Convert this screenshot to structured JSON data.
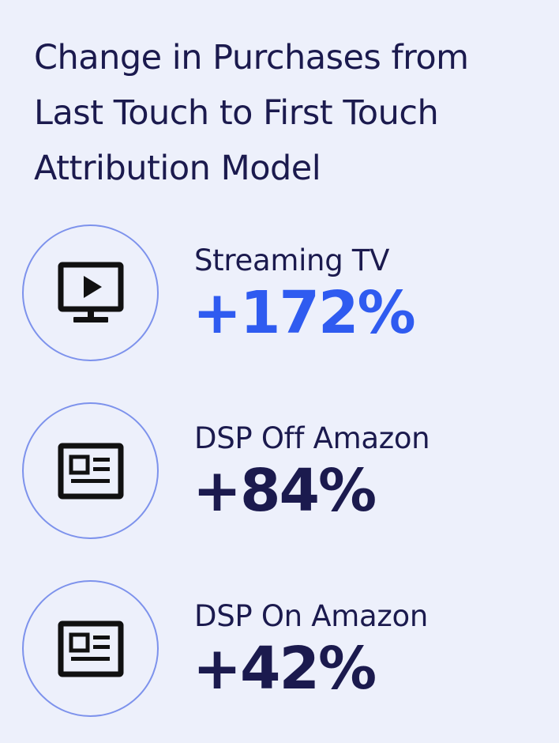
{
  "title_lines": [
    "Change in Purchases from",
    "Last Touch to First Touch",
    "Attribution Model"
  ],
  "metrics": [
    {
      "label": "Streaming TV",
      "value": "+172%",
      "icon": "streaming-tv-icon",
      "value_color": "#2f5bf0"
    },
    {
      "label": "DSP Off Amazon",
      "value": "+84%",
      "icon": "news-article-icon",
      "value_color": "#1b1a4e"
    },
    {
      "label": "DSP On Amazon",
      "value": "+42%",
      "icon": "news-article-icon",
      "value_color": "#1b1a4e"
    }
  ],
  "colors": {
    "background": "#edf0fb",
    "text": "#1b1a4e",
    "accent": "#2f5bf0",
    "circle_border": "#7d92ec",
    "icon": "#111111"
  }
}
